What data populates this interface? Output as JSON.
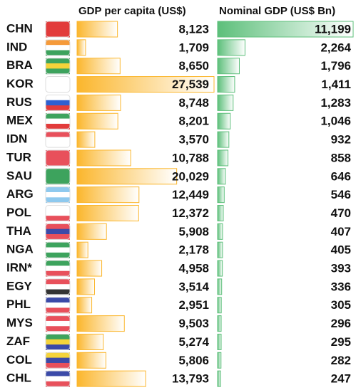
{
  "chart_data": {
    "type": "data-bar-table",
    "categories": [
      "CHN",
      "IND",
      "BRA",
      "KOR",
      "RUS",
      "MEX",
      "IDN",
      "TUR",
      "SAU",
      "ARG",
      "POL",
      "THA",
      "NGA",
      "IRN*",
      "EGY",
      "PHL",
      "MYS",
      "ZAF",
      "COL",
      "CHL"
    ],
    "series": [
      {
        "name": "GDP per capita (US$)",
        "color": "#fbb62c",
        "values": [
          8123,
          1709,
          8650,
          27539,
          8748,
          8201,
          3570,
          10788,
          20029,
          12449,
          12372,
          5908,
          2178,
          4958,
          3514,
          2951,
          9503,
          5274,
          5806,
          13793
        ],
        "value_labels": [
          "8,123",
          "1,709",
          "8,650",
          "27,539",
          "8,748",
          "8,201",
          "3,570",
          "10,788",
          "20,029",
          "12,449",
          "12,372",
          "5,908",
          "2,178",
          "4,958",
          "3,514",
          "2,951",
          "9,503",
          "5,274",
          "5,806",
          "13,793"
        ]
      },
      {
        "name": "Nominal GDP (US$ Bn)",
        "color": "#5cbf7a",
        "values": [
          11199,
          2264,
          1796,
          1411,
          1283,
          1046,
          932,
          858,
          646,
          546,
          470,
          407,
          405,
          393,
          336,
          305,
          296,
          295,
          282,
          247
        ],
        "value_labels": [
          "11,199",
          "2,264",
          "1,796",
          "1,411",
          "1,283",
          "1,046",
          "932",
          "858",
          "646",
          "546",
          "470",
          "407",
          "405",
          "393",
          "336",
          "305",
          "296",
          "295",
          "282",
          "247"
        ]
      }
    ]
  }
}
